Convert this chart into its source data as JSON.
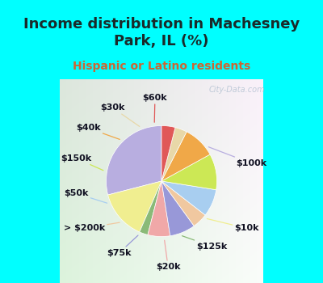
{
  "title": "Income distribution in Machesney\nPark, IL (%)",
  "subtitle": "Hispanic or Latino residents",
  "bg_cyan": "#00FFFF",
  "watermark": "City-Data.com",
  "slices": [
    {
      "label": "$100k",
      "value": 29.0,
      "color": "#b8aee0"
    },
    {
      "label": "$10k",
      "value": 14.5,
      "color": "#f0ee90"
    },
    {
      "label": "$125k",
      "value": 2.5,
      "color": "#8aba78"
    },
    {
      "label": "$20k",
      "value": 6.5,
      "color": "#f0a8a8"
    },
    {
      "label": "$75k",
      "value": 7.5,
      "color": "#9898d8"
    },
    {
      "label": "> $200k",
      "value": 4.5,
      "color": "#f0c8a0"
    },
    {
      "label": "$50k",
      "value": 8.0,
      "color": "#a8cef0"
    },
    {
      "label": "$150k",
      "value": 10.5,
      "color": "#cce855"
    },
    {
      "label": "$40k",
      "value": 9.5,
      "color": "#f0a848"
    },
    {
      "label": "$30k",
      "value": 3.5,
      "color": "#e8d8a8"
    },
    {
      "label": "$60k",
      "value": 4.0,
      "color": "#e05858"
    }
  ],
  "title_fontsize": 13,
  "subtitle_fontsize": 10,
  "label_fontsize": 8
}
